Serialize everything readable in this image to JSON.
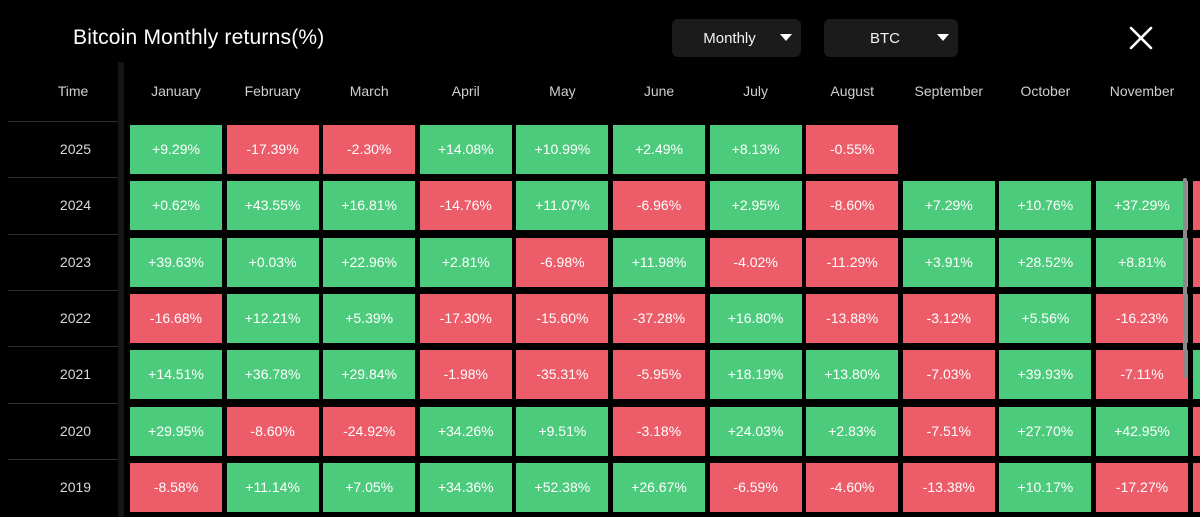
{
  "title": "Bitcoin Monthly returns(%)",
  "controls": {
    "period_value": "Monthly",
    "asset_value": "BTC",
    "close_icon": "close-icon",
    "caret_icon": "caret-down-icon"
  },
  "colors": {
    "positive": "#4dcb7d",
    "negative": "#ec5c69",
    "background": "#000000"
  },
  "table": {
    "time_header": "Time",
    "months": [
      "January",
      "February",
      "March",
      "April",
      "May",
      "June",
      "July",
      "August",
      "September",
      "October",
      "November"
    ],
    "rows": [
      {
        "year": "2025",
        "values": [
          "+9.29%",
          "-17.39%",
          "-2.30%",
          "+14.08%",
          "+10.99%",
          "+2.49%",
          "+8.13%",
          "-0.55%",
          "",
          "",
          ""
        ]
      },
      {
        "year": "2024",
        "values": [
          "+0.62%",
          "+43.55%",
          "+16.81%",
          "-14.76%",
          "+11.07%",
          "-6.96%",
          "+2.95%",
          "-8.60%",
          "+7.29%",
          "+10.76%",
          "+37.29%"
        ]
      },
      {
        "year": "2023",
        "values": [
          "+39.63%",
          "+0.03%",
          "+22.96%",
          "+2.81%",
          "-6.98%",
          "+11.98%",
          "-4.02%",
          "-11.29%",
          "+3.91%",
          "+28.52%",
          "+8.81%"
        ]
      },
      {
        "year": "2022",
        "values": [
          "-16.68%",
          "+12.21%",
          "+5.39%",
          "-17.30%",
          "-15.60%",
          "-37.28%",
          "+16.80%",
          "-13.88%",
          "-3.12%",
          "+5.56%",
          "-16.23%"
        ]
      },
      {
        "year": "2021",
        "values": [
          "+14.51%",
          "+36.78%",
          "+29.84%",
          "-1.98%",
          "-35.31%",
          "-5.95%",
          "+18.19%",
          "+13.80%",
          "-7.03%",
          "+39.93%",
          "-7.11%"
        ]
      },
      {
        "year": "2020",
        "values": [
          "+29.95%",
          "-8.60%",
          "-24.92%",
          "+34.26%",
          "+9.51%",
          "-3.18%",
          "+24.03%",
          "+2.83%",
          "-7.51%",
          "+27.70%",
          "+42.95%"
        ]
      },
      {
        "year": "2019",
        "values": [
          "-8.58%",
          "+11.14%",
          "+7.05%",
          "+34.36%",
          "+52.38%",
          "+26.67%",
          "-6.59%",
          "-4.60%",
          "-13.38%",
          "+10.17%",
          "-17.27%"
        ]
      }
    ]
  }
}
